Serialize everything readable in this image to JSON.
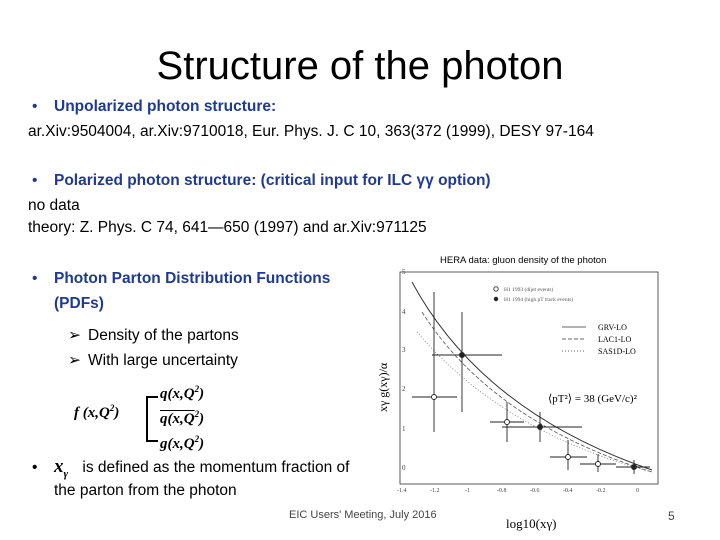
{
  "slide": {
    "title": "Structure of the photon",
    "bullet1": {
      "label": "Unpolarized photon structure:",
      "refs": "ar.Xiv:9504004, ar.Xiv:9710018, Eur. Phys. J. C 10, 363(372 (1999), DESY 97-164"
    },
    "bullet2": {
      "label": "Polarized photon structure: (critical input for ILC γγ  option)",
      "line2": "no data",
      "line3": "theory: Z. Phys. C 74, 641—650 (1997) and ar.Xiv:971125"
    },
    "bullet3": {
      "line1": "Photon Parton Distribution Functions",
      "line2": "(PDFs)",
      "sub1": "Density of the partons",
      "sub2": "With large uncertainty"
    },
    "formula": {
      "lhs": "f (x,Q",
      "q": "q(x,Q",
      "qbar": "q(x,Q",
      "g": "g(x,Q",
      "exp": "2",
      "close": ")"
    },
    "bullet4": {
      "symbol": "x",
      "symbol_sub": "γ",
      "line1": "is defined as the momentum fraction of",
      "line2": "the parton from the photon"
    },
    "figure": {
      "caption": "HERA data: gluon density of the photon",
      "legend_h1": "H1 1993 (dijet events)",
      "legend_h1b": "H1 1994 (high pT track events)",
      "legend_grv": "GRV-LO",
      "legend_lac": "LAC1-LO",
      "legend_sas": "SAS1D-LO",
      "ylabel": "xγ g(xγ)/α",
      "xlabel": "log10(xγ)",
      "pt_label": "⟨pT²⟩ = 38 (GeV/c)²",
      "yticks": [
        "5",
        "4",
        "3",
        "2",
        "1",
        "0"
      ],
      "xticks": [
        "-1.4",
        "-1.2",
        "-1",
        "-0.8",
        "-0.6",
        "-0.4",
        "-0.2",
        "0"
      ]
    },
    "footer": "EIC Users' Meeting, July 2016",
    "page_number": "5"
  }
}
